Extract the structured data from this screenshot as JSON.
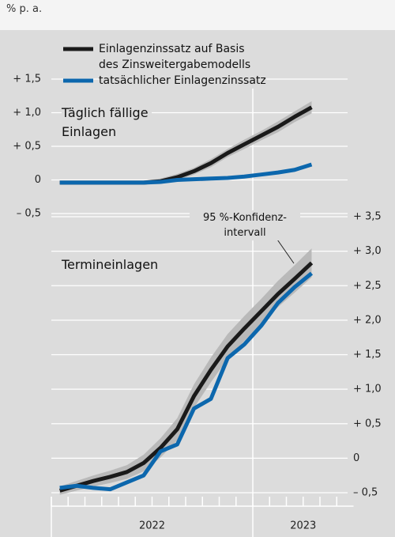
{
  "unit": "% p. a.",
  "chart_data": [
    {
      "type": "line",
      "title": "Täglich fällige\nEinlagen",
      "y_axis_position": "left",
      "x": [
        2022.042,
        2022.125,
        2022.208,
        2022.292,
        2022.375,
        2022.458,
        2022.542,
        2022.625,
        2022.708,
        2022.792,
        2022.875,
        2022.958,
        2023.042,
        2023.125,
        2023.208,
        2023.292
      ],
      "xlim": [
        2022,
        2023.5
      ],
      "ylim": [
        -0.5,
        1.5
      ],
      "yticks": [
        {
          "value": -0.5,
          "label": "– 0,5"
        },
        0,
        {
          "value": 0.5,
          "label": "+ 0,5"
        },
        {
          "value": 1,
          "label": "+ 1,0"
        },
        {
          "value": 1.5,
          "label": "+ 1,5"
        }
      ],
      "grid": true,
      "series": [
        {
          "name": "Einlagenzinssatz auf Basis\ndes Zinsweitergabemodells",
          "color": "#1a1a1a",
          "values": [
            -0.04,
            -0.04,
            -0.04,
            -0.04,
            -0.04,
            -0.04,
            -0.02,
            0.04,
            0.13,
            0.25,
            0.4,
            0.53,
            0.66,
            0.79,
            0.94,
            1.08
          ],
          "error": [
            0.03,
            0.03,
            0.03,
            0.03,
            0.03,
            0.03,
            0.04,
            0.05,
            0.05,
            0.06,
            0.06,
            0.07,
            0.07,
            0.08,
            0.08,
            0.09
          ]
        },
        {
          "name": "tatsächlicher Einlagenzinssatz",
          "color": "#0c67ad",
          "values": [
            -0.04,
            -0.04,
            -0.04,
            -0.04,
            -0.04,
            -0.04,
            -0.03,
            0.0,
            0.01,
            0.02,
            0.03,
            0.05,
            0.08,
            0.11,
            0.15,
            0.23
          ]
        }
      ]
    },
    {
      "type": "line",
      "title": "Termineinlagen",
      "annotation": "95 %-Konfidenz-\nintervall",
      "y_axis_position": "right",
      "x": [
        2022.042,
        2022.125,
        2022.208,
        2022.292,
        2022.375,
        2022.458,
        2022.542,
        2022.625,
        2022.708,
        2022.792,
        2022.875,
        2022.958,
        2023.042,
        2023.125,
        2023.208,
        2023.292
      ],
      "xlim": [
        2022,
        2023.5
      ],
      "xticks": [
        2022,
        2023
      ],
      "ylim": [
        -0.5,
        3.5
      ],
      "yticks": [
        {
          "value": -0.5,
          "label": "– 0,5"
        },
        0,
        {
          "value": 0.5,
          "label": "+ 0,5"
        },
        {
          "value": 1,
          "label": "+ 1,0"
        },
        {
          "value": 1.5,
          "label": "+ 1,5"
        },
        {
          "value": 2,
          "label": "+ 2,0"
        },
        {
          "value": 2.5,
          "label": "+ 2,5"
        },
        {
          "value": 3,
          "label": "+ 3,0"
        },
        {
          "value": 3.5,
          "label": "+ 3,5"
        }
      ],
      "grid": true,
      "series": [
        {
          "color": "#1a1a1a",
          "values": [
            -0.47,
            -0.4,
            -0.33,
            -0.27,
            -0.2,
            -0.07,
            0.15,
            0.42,
            0.9,
            1.28,
            1.62,
            1.88,
            2.13,
            2.38,
            2.6,
            2.83
          ],
          "error": [
            0.06,
            0.07,
            0.08,
            0.09,
            0.1,
            0.12,
            0.14,
            0.16,
            0.17,
            0.18,
            0.18,
            0.18,
            0.18,
            0.19,
            0.2,
            0.21
          ]
        },
        {
          "color": "#0c67ad",
          "values": [
            -0.43,
            -0.4,
            -0.43,
            -0.45,
            -0.35,
            -0.25,
            0.1,
            0.2,
            0.72,
            0.86,
            1.45,
            1.65,
            1.92,
            2.25,
            2.48,
            2.68
          ]
        }
      ]
    }
  ]
}
